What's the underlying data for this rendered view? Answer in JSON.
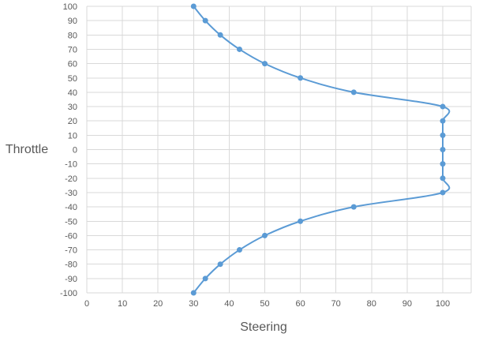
{
  "chart_data": {
    "type": "scatter",
    "xlabel": "Steering",
    "ylabel": "Throttle",
    "xlim": [
      0,
      100
    ],
    "ylim": [
      -100,
      100
    ],
    "x_ticks": [
      0,
      10,
      20,
      30,
      40,
      50,
      60,
      70,
      80,
      90,
      100
    ],
    "y_ticks": [
      100,
      90,
      80,
      70,
      60,
      50,
      40,
      30,
      20,
      10,
      0,
      -10,
      -20,
      -30,
      -40,
      -50,
      -60,
      -70,
      -80,
      -90,
      -100
    ],
    "grid": true,
    "smooth_line": true,
    "markers": true,
    "series_color": "#5B9BD5",
    "grid_color": "#D9D9D9",
    "series": [
      {
        "x": [
          30,
          33.3,
          37.5,
          42.9,
          50,
          60,
          75,
          100,
          100,
          100,
          100,
          100,
          100,
          100,
          75,
          60,
          50,
          42.9,
          37.5,
          33.3,
          30
        ],
        "y": [
          100,
          90,
          80,
          70,
          60,
          50,
          40,
          30,
          20,
          10,
          0,
          -10,
          -20,
          -30,
          -40,
          -50,
          -60,
          -70,
          -80,
          -90,
          -100
        ]
      }
    ]
  }
}
